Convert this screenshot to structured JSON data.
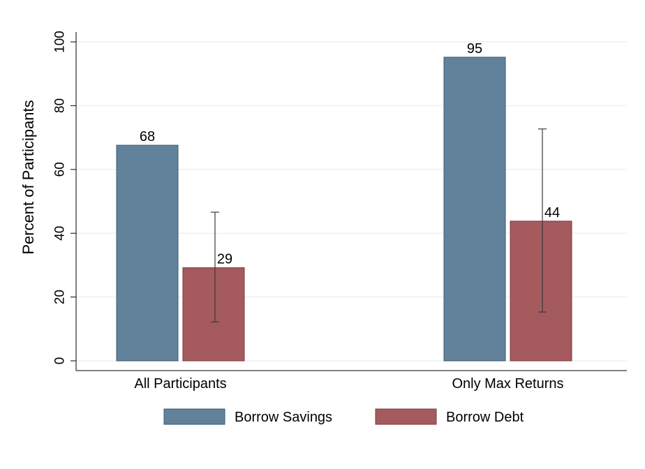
{
  "chart_data": {
    "type": "bar",
    "title": "",
    "xlabel": "",
    "ylabel": "Percent of Participants",
    "ylim": [
      0,
      100
    ],
    "yticks": [
      0,
      20,
      40,
      60,
      80,
      100
    ],
    "ytick_labels": [
      "0",
      "20",
      "40",
      "60",
      "80",
      "100"
    ],
    "categories": [
      "All Participants",
      "Only Max Returns"
    ],
    "series": [
      {
        "name": "Borrow Savings",
        "color": "#61829a",
        "values": [
          67.6,
          95.2
        ],
        "value_labels": [
          "68",
          "95"
        ]
      },
      {
        "name": "Borrow Debt",
        "color": "#a55a5e",
        "values": [
          29.2,
          43.8
        ],
        "value_labels": [
          "29",
          "44"
        ],
        "error_low": [
          12.2,
          15.3
        ],
        "error_high": [
          46.6,
          72.7
        ]
      }
    ],
    "grid": true,
    "legend_position": "bottom"
  }
}
